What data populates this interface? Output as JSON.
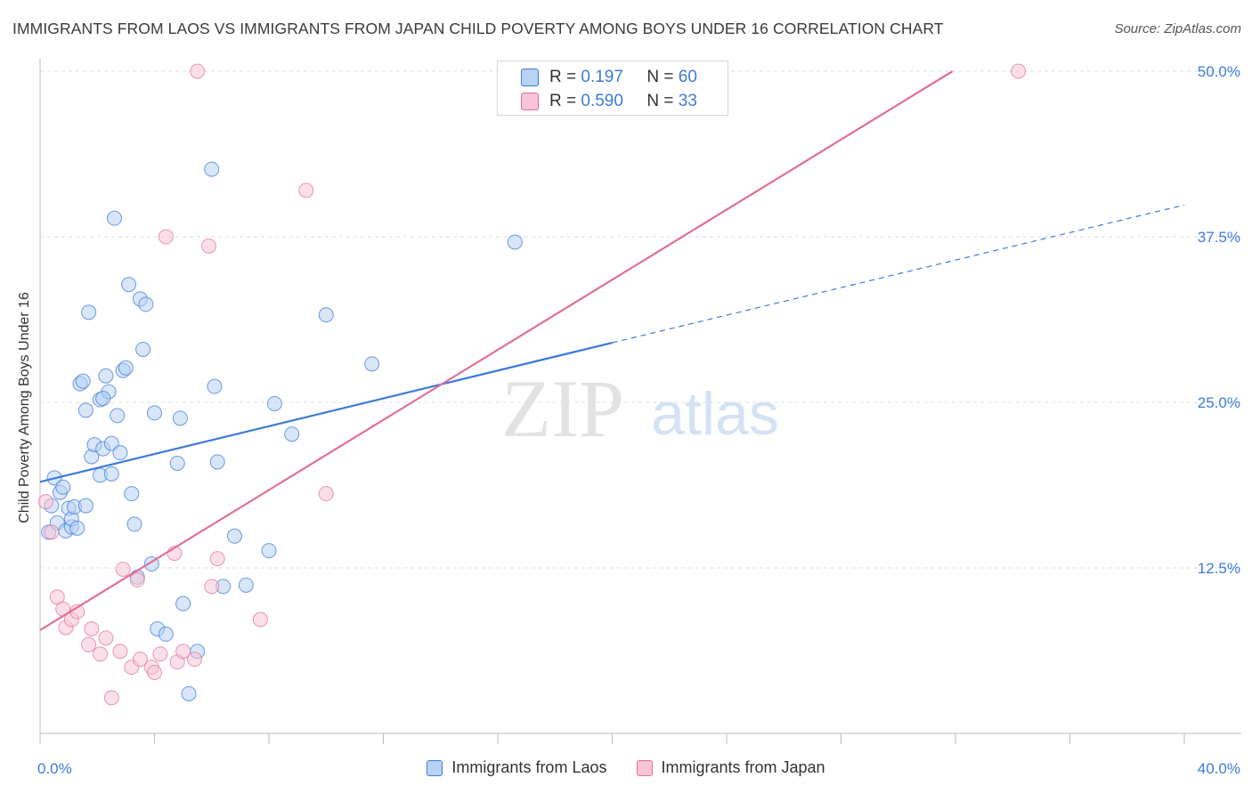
{
  "title": "IMMIGRANTS FROM LAOS VS IMMIGRANTS FROM JAPAN CHILD POVERTY AMONG BOYS UNDER 16 CORRELATION CHART",
  "source": "Source: ZipAtlas.com",
  "watermark": {
    "zip": "ZIP",
    "atlas": "atlas"
  },
  "legend_top": [
    {
      "r_label": "R =",
      "r_value": "0.197",
      "n_label": "N =",
      "n_value": "60"
    },
    {
      "r_label": "R =",
      "r_value": "0.590",
      "n_label": "N =",
      "n_value": "33"
    }
  ],
  "legend_bottom": [
    {
      "label": "Immigrants from Laos"
    },
    {
      "label": "Immigrants from Japan"
    }
  ],
  "chart_data": {
    "type": "scatter",
    "title": "IMMIGRANTS FROM LAOS VS IMMIGRANTS FROM JAPAN CHILD POVERTY AMONG BOYS UNDER 16 CORRELATION CHART",
    "xlabel": "",
    "ylabel": "Child Poverty Among Boys Under 16",
    "xlim": [
      0,
      40
    ],
    "ylim": [
      0,
      50
    ],
    "x_tick_labels": [
      {
        "value": 0,
        "label": "0.0%"
      },
      {
        "value": 40,
        "label": "40.0%"
      }
    ],
    "y_tick_labels": [
      {
        "value": 12.5,
        "label": "12.5%"
      },
      {
        "value": 25,
        "label": "25.0%"
      },
      {
        "value": 37.5,
        "label": "37.5%"
      },
      {
        "value": 50,
        "label": "50.0%"
      }
    ],
    "grid": true,
    "colors": {
      "laos": "#3d7bd9",
      "japan": "#e06f98",
      "laos_fill": "#b8d2f3",
      "japan_fill": "#f8c4d6",
      "tick_label": "#3d7bd9"
    },
    "series": [
      {
        "name": "Immigrants from Laos",
        "R": 0.197,
        "N": 60,
        "trend": {
          "x_start": 0,
          "y_start": 19.0,
          "x_solid_end": 20.0,
          "y_solid_end": 29.5,
          "x_dash_end": 40.0,
          "y_dash_end": 39.9
        },
        "points": [
          [
            0.3,
            15.2
          ],
          [
            0.5,
            19.3
          ],
          [
            0.6,
            15.9
          ],
          [
            0.7,
            18.2
          ],
          [
            0.8,
            18.6
          ],
          [
            0.9,
            15.3
          ],
          [
            1.0,
            17.0
          ],
          [
            1.1,
            15.6
          ],
          [
            1.1,
            16.2
          ],
          [
            1.2,
            17.1
          ],
          [
            1.3,
            15.5
          ],
          [
            1.4,
            26.4
          ],
          [
            1.5,
            26.6
          ],
          [
            1.6,
            24.4
          ],
          [
            1.6,
            17.2
          ],
          [
            1.7,
            31.8
          ],
          [
            1.8,
            20.9
          ],
          [
            1.9,
            21.8
          ],
          [
            2.1,
            19.5
          ],
          [
            2.1,
            25.2
          ],
          [
            2.2,
            21.5
          ],
          [
            2.3,
            27.0
          ],
          [
            2.4,
            25.8
          ],
          [
            2.5,
            21.9
          ],
          [
            2.6,
            38.9
          ],
          [
            2.7,
            24.0
          ],
          [
            2.8,
            21.2
          ],
          [
            2.9,
            27.4
          ],
          [
            3.0,
            27.6
          ],
          [
            3.1,
            33.9
          ],
          [
            3.2,
            18.1
          ],
          [
            3.3,
            15.8
          ],
          [
            3.4,
            11.8
          ],
          [
            3.5,
            32.8
          ],
          [
            3.6,
            29.0
          ],
          [
            3.7,
            32.4
          ],
          [
            3.9,
            12.8
          ],
          [
            4.0,
            24.2
          ],
          [
            4.1,
            7.9
          ],
          [
            4.4,
            7.5
          ],
          [
            4.8,
            20.4
          ],
          [
            4.9,
            23.8
          ],
          [
            5.0,
            9.8
          ],
          [
            5.2,
            3.0
          ],
          [
            5.5,
            6.2
          ],
          [
            6.0,
            42.6
          ],
          [
            6.1,
            26.2
          ],
          [
            6.2,
            20.5
          ],
          [
            6.4,
            11.1
          ],
          [
            6.8,
            14.9
          ],
          [
            7.2,
            11.2
          ],
          [
            8.0,
            13.8
          ],
          [
            8.2,
            24.9
          ],
          [
            8.8,
            22.6
          ],
          [
            10.0,
            31.6
          ],
          [
            11.6,
            27.9
          ],
          [
            16.6,
            37.1
          ],
          [
            2.5,
            19.6
          ],
          [
            2.2,
            25.3
          ],
          [
            0.4,
            17.2
          ]
        ]
      },
      {
        "name": "Immigrants from Japan",
        "R": 0.59,
        "N": 33,
        "trend": {
          "x_start": 0,
          "y_start": 7.8,
          "x_end": 31.9,
          "y_end": 50.0
        },
        "points": [
          [
            0.2,
            17.5
          ],
          [
            0.4,
            15.2
          ],
          [
            0.6,
            10.3
          ],
          [
            0.8,
            9.4
          ],
          [
            0.9,
            8.0
          ],
          [
            1.1,
            8.6
          ],
          [
            1.3,
            9.2
          ],
          [
            1.7,
            6.7
          ],
          [
            1.8,
            7.9
          ],
          [
            2.1,
            6.0
          ],
          [
            2.3,
            7.2
          ],
          [
            2.5,
            2.7
          ],
          [
            2.8,
            6.2
          ],
          [
            2.9,
            12.4
          ],
          [
            3.2,
            5.0
          ],
          [
            3.4,
            11.6
          ],
          [
            3.5,
            5.6
          ],
          [
            3.9,
            5.0
          ],
          [
            4.0,
            4.6
          ],
          [
            4.2,
            6.0
          ],
          [
            4.4,
            37.5
          ],
          [
            4.7,
            13.6
          ],
          [
            4.8,
            5.4
          ],
          [
            5.0,
            6.2
          ],
          [
            5.4,
            5.6
          ],
          [
            5.5,
            50.0
          ],
          [
            5.9,
            36.8
          ],
          [
            6.0,
            11.1
          ],
          [
            6.2,
            13.2
          ],
          [
            7.7,
            8.6
          ],
          [
            9.3,
            41.0
          ],
          [
            10.0,
            18.1
          ],
          [
            34.2,
            50.0
          ]
        ]
      }
    ]
  }
}
